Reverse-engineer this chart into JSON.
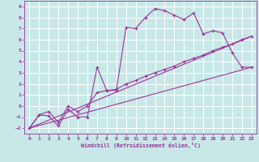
{
  "title": "",
  "xlabel": "Windchill (Refroidissement éolien,°C)",
  "ylabel": "",
  "xlim": [
    -0.5,
    23.5
  ],
  "ylim": [
    -2.5,
    9.5
  ],
  "xticks": [
    0,
    1,
    2,
    3,
    4,
    5,
    6,
    7,
    8,
    9,
    10,
    11,
    12,
    13,
    14,
    15,
    16,
    17,
    18,
    19,
    20,
    21,
    22,
    23
  ],
  "yticks": [
    -2,
    -1,
    0,
    1,
    2,
    3,
    4,
    5,
    6,
    7,
    8,
    9
  ],
  "bg_color": "#c8e8e8",
  "grid_color": "#ffffff",
  "line_color": "#993399",
  "line1_x": [
    0,
    1,
    2,
    3,
    4,
    5,
    6,
    7,
    8,
    9,
    10,
    11,
    12,
    13,
    14,
    15,
    16,
    17,
    18,
    19,
    20,
    21,
    22,
    23
  ],
  "line1_y": [
    -2,
    -0.8,
    -0.9,
    -1.8,
    -0.3,
    -1.0,
    -1.0,
    3.5,
    1.4,
    1.4,
    7.1,
    7.0,
    8.0,
    8.8,
    8.6,
    8.2,
    7.8,
    8.4,
    6.5,
    6.8,
    6.6,
    4.8,
    3.5,
    3.5
  ],
  "line2_x": [
    0,
    23
  ],
  "line2_y": [
    -2.0,
    3.5
  ],
  "line3_x": [
    0,
    1,
    2,
    3,
    4,
    5,
    6,
    7,
    8,
    9,
    10,
    11,
    12,
    13,
    14,
    15,
    16,
    17,
    18,
    19,
    20,
    21,
    22,
    23
  ],
  "line3_y": [
    -2,
    -0.8,
    -0.5,
    -1.5,
    -0.0,
    -0.5,
    0.0,
    1.2,
    1.4,
    1.5,
    2.0,
    2.3,
    2.7,
    3.0,
    3.3,
    3.6,
    4.0,
    4.3,
    4.6,
    5.0,
    5.3,
    5.6,
    6.0,
    6.3
  ],
  "line4_x": [
    0,
    23
  ],
  "line4_y": [
    -2.0,
    6.3
  ]
}
